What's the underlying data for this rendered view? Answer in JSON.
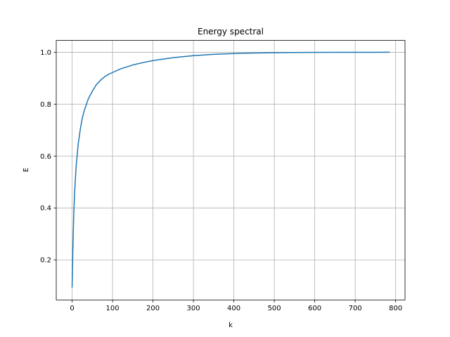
{
  "chart_data": {
    "type": "line",
    "title": "Energy spectral",
    "xlabel": "k",
    "ylabel": "E",
    "xlim": [
      -39.2,
      823.2
    ],
    "ylim": [
      0.0455,
      1.0455
    ],
    "xticks": [
      0,
      100,
      200,
      300,
      400,
      500,
      600,
      700,
      800
    ],
    "yticks": [
      0.2,
      0.4,
      0.6,
      0.8,
      1.0
    ],
    "xtick_labels": [
      "0",
      "100",
      "200",
      "300",
      "400",
      "500",
      "600",
      "700",
      "800"
    ],
    "ytick_labels": [
      "0.2",
      "0.4",
      "0.6",
      "0.8",
      "1.0"
    ],
    "grid": true,
    "series": [
      {
        "color": "#1f77b4",
        "x": [
          0,
          2,
          4,
          6,
          8,
          10,
          15,
          20,
          25,
          30,
          40,
          50,
          60,
          70,
          80,
          90,
          100,
          120,
          150,
          175,
          200,
          250,
          300,
          350,
          400,
          450,
          500,
          550,
          600,
          650,
          700,
          750,
          784
        ],
        "y": [
          0.095,
          0.25,
          0.37,
          0.45,
          0.51,
          0.56,
          0.645,
          0.7,
          0.745,
          0.775,
          0.82,
          0.85,
          0.875,
          0.892,
          0.905,
          0.915,
          0.922,
          0.936,
          0.951,
          0.96,
          0.968,
          0.979,
          0.987,
          0.992,
          0.995,
          0.997,
          0.998,
          0.999,
          0.9995,
          0.9997,
          0.9998,
          0.9999,
          1.0
        ]
      }
    ]
  }
}
